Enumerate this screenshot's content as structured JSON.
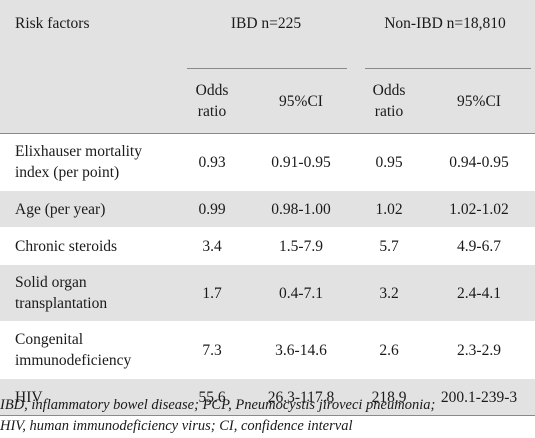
{
  "table": {
    "header": {
      "risk_factors": "Risk factors",
      "group_ibd": "IBD n=225",
      "group_non_ibd": "Non-IBD n=18,810",
      "odds_ratio_line1": "Odds",
      "odds_ratio_line2": "ratio",
      "ci": "95%CI"
    },
    "rows": [
      {
        "label_line1": "Elixhauser mortality",
        "label_line2": "index (per point)",
        "ibd_or": "0.93",
        "ibd_ci": "0.91-0.95",
        "non_or": "0.95",
        "non_ci": "0.94-0.95"
      },
      {
        "label_line1": "Age (per year)",
        "label_line2": "",
        "ibd_or": "0.99",
        "ibd_ci": "0.98-1.00",
        "non_or": "1.02",
        "non_ci": "1.02-1.02"
      },
      {
        "label_line1": "Chronic steroids",
        "label_line2": "",
        "ibd_or": "3.4",
        "ibd_ci": "1.5-7.9",
        "non_or": "5.7",
        "non_ci": "4.9-6.7"
      },
      {
        "label_line1": "Solid organ",
        "label_line2": "transplantation",
        "ibd_or": "1.7",
        "ibd_ci": "0.4-7.1",
        "non_or": "3.2",
        "non_ci": "2.4-4.1"
      },
      {
        "label_line1": "Congenital",
        "label_line2": "immunodeficiency",
        "ibd_or": "7.3",
        "ibd_ci": "3.6-14.6",
        "non_or": "2.6",
        "non_ci": "2.3-2.9"
      },
      {
        "label_line1": "HIV",
        "label_line2": "",
        "ibd_or": "55.6",
        "ibd_ci": "26.3-117.8",
        "non_or": "218.9",
        "non_ci": "200.1-239-3"
      }
    ]
  },
  "footnote": {
    "line1": "IBD, inflammatory bowel disease; PCP, Pneumocystis jiroveci pneumonia;",
    "line2": "HIV, human immunodeficiency virus; CI, confidence interval"
  }
}
